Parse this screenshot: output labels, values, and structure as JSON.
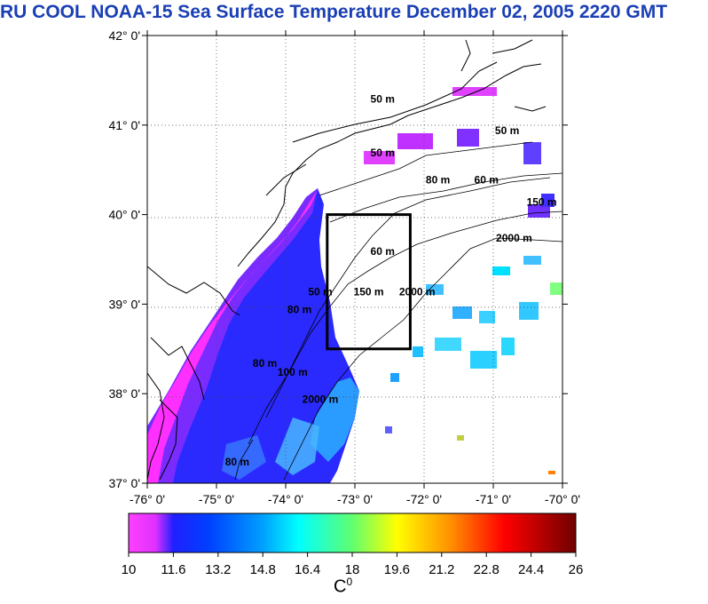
{
  "title": "RU COOL  NOAA-15 Sea Surface Temperature December 02, 2005 2220 GMT",
  "map": {
    "lat_labels": [
      "42° 0'",
      "41° 0'",
      "40° 0'",
      "39° 0'",
      "38° 0'",
      "37° 0'"
    ],
    "lon_labels": [
      "-76° 0'",
      "-75° 0'",
      "-74° 0'",
      "-73° 0'",
      "-72° 0'",
      "-71° 0'",
      "-70° 0'"
    ],
    "lat_range": [
      37,
      42
    ],
    "lon_range": [
      -76,
      -70
    ],
    "study_box": {
      "lon_min": -73.4,
      "lon_max": -72.2,
      "lat_min": 38.5,
      "lat_max": 40.0
    },
    "contour_labels": [
      {
        "text": "50 m",
        "lon": -72.6,
        "lat": 41.25
      },
      {
        "text": "50 m",
        "lon": -72.6,
        "lat": 40.65
      },
      {
        "text": "80 m",
        "lon": -71.8,
        "lat": 40.35
      },
      {
        "text": "60 m",
        "lon": -71.1,
        "lat": 40.35
      },
      {
        "text": "50 m",
        "lon": -70.8,
        "lat": 40.9
      },
      {
        "text": "150 m",
        "lon": -70.3,
        "lat": 40.1
      },
      {
        "text": "2000 m",
        "lon": -70.7,
        "lat": 39.7
      },
      {
        "text": "60 m",
        "lon": -72.6,
        "lat": 39.55
      },
      {
        "text": "150 m",
        "lon": -72.8,
        "lat": 39.1
      },
      {
        "text": "2000 m",
        "lon": -72.1,
        "lat": 39.1
      },
      {
        "text": "50 m",
        "lon": -73.5,
        "lat": 39.1
      },
      {
        "text": "80 m",
        "lon": -73.8,
        "lat": 38.9
      },
      {
        "text": "80 m",
        "lon": -74.3,
        "lat": 38.3
      },
      {
        "text": "100 m",
        "lon": -73.9,
        "lat": 38.2
      },
      {
        "text": "2000 m",
        "lon": -73.5,
        "lat": 37.9
      },
      {
        "text": "80 m",
        "lon": -74.7,
        "lat": 37.2
      }
    ]
  },
  "colorbar": {
    "ticks": [
      "10",
      "11.6",
      "13.2",
      "14.8",
      "16.4",
      "18",
      "19.6",
      "21.2",
      "22.8",
      "24.4",
      "26"
    ],
    "range": [
      10,
      26
    ],
    "unit_base": "C",
    "unit_sup": "0",
    "colors": [
      "#ff40ff",
      "#c030ff",
      "#0000ff",
      "#0060ff",
      "#00c0ff",
      "#00ffff",
      "#40ff80",
      "#a0ff40",
      "#ffff00",
      "#ffc000",
      "#ff6000",
      "#ff0000",
      "#c00000",
      "#800000"
    ]
  }
}
